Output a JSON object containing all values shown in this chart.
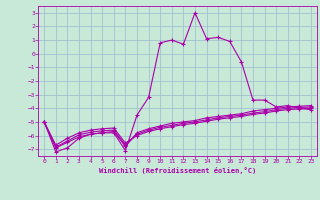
{
  "title": "",
  "xlabel": "Windchill (Refroidissement éolien,°C)",
  "ylabel": "",
  "xlim": [
    -0.5,
    23.5
  ],
  "ylim": [
    -7.5,
    3.5
  ],
  "yticks": [
    3,
    2,
    1,
    0,
    -1,
    -2,
    -3,
    -4,
    -5,
    -6,
    -7
  ],
  "xticks": [
    0,
    1,
    2,
    3,
    4,
    5,
    6,
    7,
    8,
    9,
    10,
    11,
    12,
    13,
    14,
    15,
    16,
    17,
    18,
    19,
    20,
    21,
    22,
    23
  ],
  "background_color": "#c8e8d8",
  "grid_color": "#99bbcc",
  "line_color": "#aa00aa",
  "series1": {
    "x": [
      0,
      1,
      2,
      3,
      4,
      5,
      6,
      7,
      8,
      9,
      10,
      11,
      12,
      13,
      14,
      15,
      16,
      17,
      18,
      19,
      20,
      21,
      22,
      23
    ],
    "y": [
      -5.0,
      -7.2,
      -6.9,
      -6.2,
      -5.9,
      -5.8,
      -5.8,
      -7.1,
      -4.5,
      -3.2,
      0.8,
      1.0,
      0.7,
      3.0,
      1.1,
      1.2,
      0.9,
      -0.6,
      -3.4,
      -3.4,
      -3.9,
      -3.8,
      -4.0,
      -4.1
    ]
  },
  "series2": {
    "x": [
      0,
      1,
      2,
      3,
      4,
      5,
      6,
      7,
      8,
      9,
      10,
      11,
      12,
      13,
      14,
      15,
      16,
      17,
      18,
      19,
      20,
      21,
      22,
      23
    ],
    "y": [
      -5.0,
      -6.9,
      -6.5,
      -6.1,
      -5.9,
      -5.8,
      -5.7,
      -6.8,
      -5.8,
      -5.5,
      -5.3,
      -5.1,
      -5.0,
      -4.9,
      -4.7,
      -4.6,
      -4.5,
      -4.4,
      -4.2,
      -4.1,
      -4.0,
      -3.9,
      -3.85,
      -3.8
    ]
  },
  "series3": {
    "x": [
      0,
      1,
      2,
      3,
      4,
      5,
      6,
      7,
      8,
      9,
      10,
      11,
      12,
      13,
      14,
      15,
      16,
      17,
      18,
      19,
      20,
      21,
      22,
      23
    ],
    "y": [
      -5.0,
      -6.85,
      -6.4,
      -5.95,
      -5.75,
      -5.65,
      -5.6,
      -6.7,
      -5.9,
      -5.6,
      -5.4,
      -5.25,
      -5.1,
      -5.0,
      -4.85,
      -4.7,
      -4.6,
      -4.5,
      -4.35,
      -4.25,
      -4.1,
      -4.0,
      -3.95,
      -3.9
    ]
  },
  "series4": {
    "x": [
      0,
      1,
      2,
      3,
      4,
      5,
      6,
      7,
      8,
      9,
      10,
      11,
      12,
      13,
      14,
      15,
      16,
      17,
      18,
      19,
      20,
      21,
      22,
      23
    ],
    "y": [
      -5.0,
      -6.7,
      -6.2,
      -5.8,
      -5.6,
      -5.5,
      -5.45,
      -6.55,
      -6.0,
      -5.7,
      -5.5,
      -5.35,
      -5.2,
      -5.1,
      -4.95,
      -4.8,
      -4.7,
      -4.6,
      -4.45,
      -4.35,
      -4.2,
      -4.1,
      -4.05,
      -4.0
    ]
  }
}
